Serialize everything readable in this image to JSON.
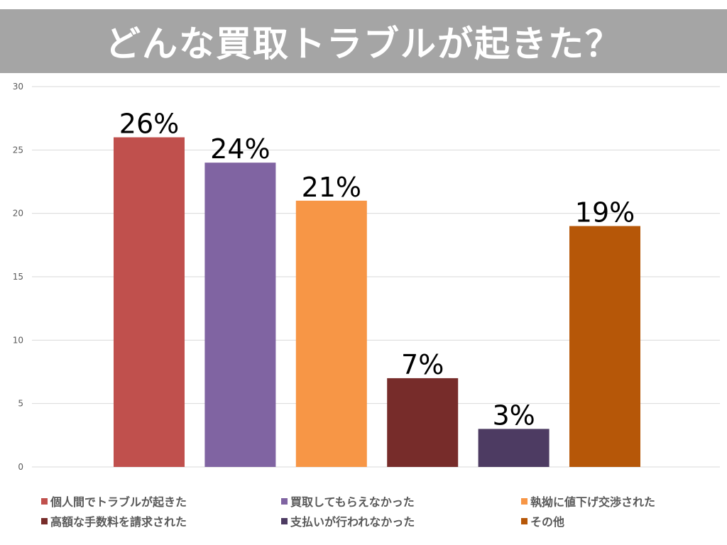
{
  "chart_data": {
    "type": "bar",
    "title": "どんな買取トラブルが起きた？",
    "xlabel": "",
    "ylabel": "",
    "ylim": [
      0,
      30
    ],
    "yticks": [
      0,
      5,
      10,
      15,
      20,
      25,
      30
    ],
    "grid": true,
    "legend_position": "bottom",
    "series": [
      {
        "name": "個人間でトラブルが起きた",
        "value": 26,
        "label": "26%",
        "color": "#c0504d"
      },
      {
        "name": "買取してもらえなかった",
        "value": 24,
        "label": "24%",
        "color": "#8064a2"
      },
      {
        "name": "執拗に値下げ交渉された",
        "value": 21,
        "label": "21%",
        "color": "#f79646"
      },
      {
        "name": "高額な手数料を請求された",
        "value": 7,
        "label": "7%",
        "color": "#772c2a"
      },
      {
        "name": "支払いが行われなかった",
        "value": 3,
        "label": "3%",
        "color": "#4d3b62"
      },
      {
        "name": "その他",
        "value": 19,
        "label": "19%",
        "color": "#b65708"
      }
    ]
  }
}
